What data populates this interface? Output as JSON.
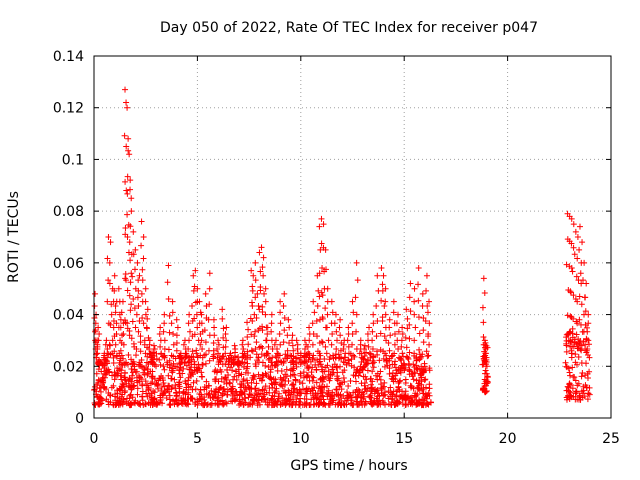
{
  "chart_data": {
    "type": "scatter",
    "title": "Day 050 of 2022, Rate Of TEC Index for receiver p047",
    "xlabel": "GPS time / hours",
    "ylabel": "ROTI / TECUs",
    "xlim": [
      0,
      25
    ],
    "ylim": [
      0,
      0.14
    ],
    "xticks": [
      "0",
      "5",
      "10",
      "15",
      "20",
      "25"
    ],
    "yticks": [
      "0",
      "0.02",
      "0.04",
      "0.06",
      "0.08",
      "0.1",
      "0.12",
      "0.14"
    ],
    "grid": true,
    "marker": "plus",
    "color": "#ff0000",
    "series": [
      {
        "x": [
          0.05,
          0.1,
          0.15,
          0.2,
          0.25,
          0.35,
          0.5,
          0.6,
          0.7,
          0.8,
          0.9,
          1.0,
          1.1,
          1.2,
          1.3,
          1.4,
          1.5,
          1.55,
          1.6,
          1.65,
          1.7,
          1.75,
          1.8,
          1.9,
          2.0,
          2.1,
          2.2,
          2.3,
          2.4,
          2.5,
          2.6,
          2.7,
          2.8,
          2.9,
          3.0,
          3.2,
          3.4,
          3.6,
          3.8,
          4.0,
          4.2,
          4.4,
          4.6,
          4.8,
          4.9,
          5.0,
          5.1,
          5.2,
          5.4,
          5.6,
          5.8,
          6.0,
          6.2,
          6.4,
          6.6,
          6.8,
          7.0,
          7.2,
          7.4,
          7.6,
          7.7,
          7.8,
          7.9,
          8.0,
          8.1,
          8.2,
          8.3,
          8.4,
          8.6,
          8.8,
          9.0,
          9.2,
          9.4,
          9.6,
          9.8,
          10.0,
          10.2,
          10.4,
          10.6,
          10.8,
          10.9,
          11.0,
          11.1,
          11.2,
          11.3,
          11.5,
          11.7,
          11.9,
          12.1,
          12.3,
          12.5,
          12.7,
          12.9,
          13.1,
          13.3,
          13.5,
          13.7,
          13.9,
          14.0,
          14.1,
          14.3,
          14.5,
          14.7,
          14.9,
          15.1,
          15.3,
          15.5,
          15.7,
          15.9,
          16.1,
          16.2,
          18.85,
          18.9,
          18.95,
          19.0,
          22.9,
          23.0,
          23.1,
          23.2,
          23.3,
          23.4,
          23.5,
          23.6,
          23.7,
          23.8,
          23.9
        ],
        "y": [
          0.048,
          0.04,
          0.03,
          0.035,
          0.022,
          0.018,
          0.025,
          0.03,
          0.07,
          0.068,
          0.05,
          0.055,
          0.045,
          0.05,
          0.038,
          0.045,
          0.127,
          0.122,
          0.12,
          0.108,
          0.102,
          0.092,
          0.085,
          0.072,
          0.065,
          0.06,
          0.055,
          0.076,
          0.07,
          0.05,
          0.042,
          0.03,
          0.025,
          0.028,
          0.02,
          0.035,
          0.04,
          0.059,
          0.045,
          0.038,
          0.025,
          0.03,
          0.04,
          0.055,
          0.057,
          0.05,
          0.045,
          0.04,
          0.048,
          0.056,
          0.038,
          0.03,
          0.042,
          0.035,
          0.025,
          0.028,
          0.022,
          0.03,
          0.037,
          0.057,
          0.055,
          0.06,
          0.048,
          0.064,
          0.066,
          0.062,
          0.05,
          0.035,
          0.04,
          0.03,
          0.045,
          0.048,
          0.038,
          0.032,
          0.03,
          0.025,
          0.03,
          0.035,
          0.045,
          0.055,
          0.074,
          0.077,
          0.075,
          0.065,
          0.05,
          0.045,
          0.04,
          0.038,
          0.03,
          0.035,
          0.045,
          0.06,
          0.03,
          0.028,
          0.035,
          0.04,
          0.055,
          0.058,
          0.055,
          0.05,
          0.038,
          0.045,
          0.04,
          0.035,
          0.042,
          0.052,
          0.05,
          0.058,
          0.048,
          0.055,
          0.045,
          0.054,
          0.03,
          0.025,
          0.02,
          0.079,
          0.078,
          0.077,
          0.075,
          0.072,
          0.07,
          0.074,
          0.068,
          0.06,
          0.052,
          0.04
        ]
      }
    ],
    "dense_bands": [
      {
        "x": [
          0,
          16.3
        ],
        "y": [
          0.005,
          0.025
        ]
      },
      {
        "x": [
          18.75,
          19.05
        ],
        "y": [
          0.01,
          0.03
        ]
      },
      {
        "x": [
          22.8,
          24.0
        ],
        "y": [
          0.007,
          0.035
        ]
      }
    ]
  }
}
